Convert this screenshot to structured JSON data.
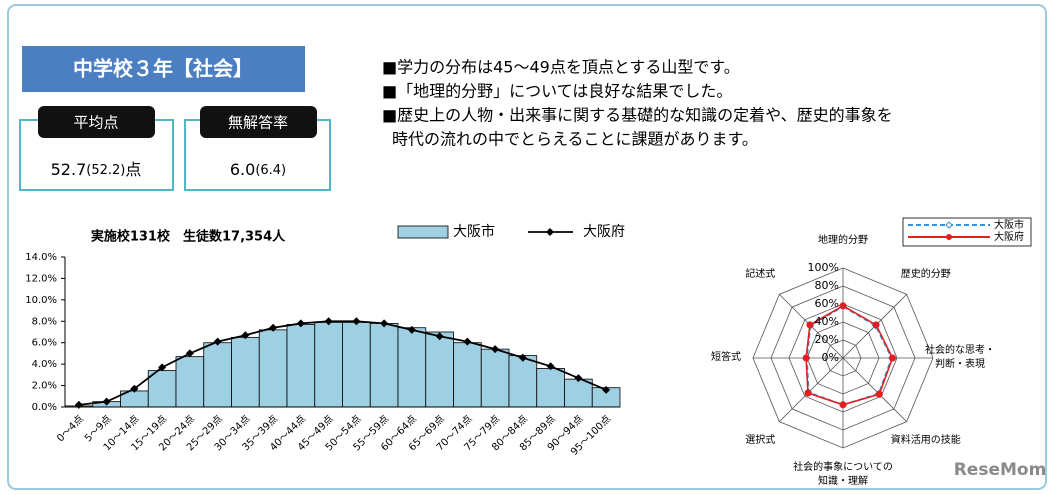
{
  "header": {
    "title": "中学校３年【社会】"
  },
  "stats": [
    {
      "label": "平均点",
      "value": "52.7",
      "compare": "(52.2)",
      "unit": "点"
    },
    {
      "label": "無解答率",
      "value": "6.0",
      "compare": "(6.4)"
    }
  ],
  "bullets": [
    {
      "lines": [
        "■学力の分布は45～49点を頂点とする山型です。"
      ]
    },
    {
      "lines": [
        "■「地理的分野」については良好な結果でした。"
      ]
    },
    {
      "lines": [
        "■歴史上の人物・出来事に関する基礎的な知識の定着や、歴史的事象を",
        "時代の流れの中でとらえることに課題があります。"
      ]
    }
  ],
  "watermark": "ReseMom",
  "chart_data": [
    {
      "type": "bar",
      "title": "実施校131校　生徒数17,354人",
      "categories": [
        "0～4点",
        "5～9点",
        "10～14点",
        "15～19点",
        "20～24点",
        "25～29点",
        "30～34点",
        "35～39点",
        "40～44点",
        "45～49点",
        "50～54点",
        "55～59点",
        "60～64点",
        "65～69点",
        "70～74点",
        "75～79点",
        "80～84点",
        "85～89点",
        "90～94点",
        "95～100点"
      ],
      "series": [
        {
          "name": "大阪市",
          "type": "bar",
          "color": "#9fcfe2",
          "values": [
            0.1,
            0.5,
            1.5,
            3.4,
            4.7,
            6.0,
            6.5,
            7.2,
            7.7,
            7.9,
            7.9,
            7.8,
            7.4,
            7.0,
            6.0,
            5.4,
            4.8,
            3.6,
            2.6,
            1.8
          ]
        },
        {
          "name": "大阪府",
          "type": "line",
          "color": "#000000",
          "values": [
            0.2,
            0.5,
            1.7,
            3.7,
            5.0,
            6.1,
            6.7,
            7.4,
            7.8,
            8.0,
            8.0,
            7.8,
            7.2,
            6.6,
            6.1,
            5.4,
            4.6,
            3.8,
            2.7,
            1.6
          ]
        }
      ],
      "ylim": [
        0,
        14
      ],
      "yticks": [
        {
          "value": 0,
          "label": "0.0%"
        },
        {
          "value": 2,
          "label": "2.0%"
        },
        {
          "value": 4,
          "label": "4.0%"
        },
        {
          "value": 6,
          "label": "6.0%"
        },
        {
          "value": 8,
          "label": "8.0%"
        },
        {
          "value": 10,
          "label": "10.0%"
        },
        {
          "value": 12,
          "label": "12.0%"
        },
        {
          "value": 14,
          "label": "14.0%"
        }
      ],
      "legend": "top"
    },
    {
      "type": "radar",
      "categories": [
        "地理的分野",
        "歴史的分野",
        "社会的な思考・\n判断・表現",
        "資料活用の技能",
        "社会的事象についての\n知識・理解",
        "選択式",
        "短答式",
        "記述式"
      ],
      "series": [
        {
          "name": "大阪市",
          "color": "#3a8fd6",
          "style": "dashed",
          "values": [
            57,
            51,
            54,
            56,
            52,
            54,
            40,
            51
          ]
        },
        {
          "name": "大阪府",
          "color": "#e02020",
          "style": "solid",
          "values": [
            58,
            52,
            55,
            57,
            52,
            55,
            41,
            52
          ]
        }
      ],
      "ylim": [
        0,
        100
      ],
      "yticks": [
        {
          "value": 0,
          "label": "0%"
        },
        {
          "value": 20,
          "label": "20%"
        },
        {
          "value": 40,
          "label": "40%"
        },
        {
          "value": 60,
          "label": "60%"
        },
        {
          "value": 80,
          "label": "80%"
        },
        {
          "value": 100,
          "label": "100%"
        }
      ],
      "legend": "upper right"
    }
  ]
}
